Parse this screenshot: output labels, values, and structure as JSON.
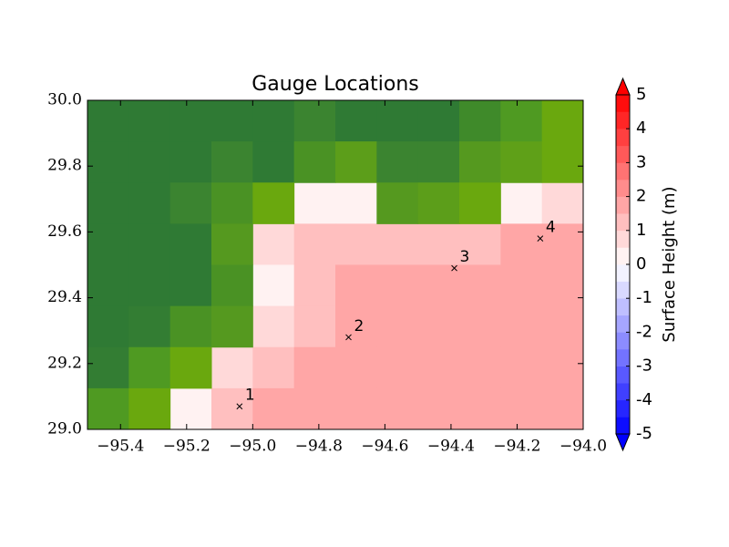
{
  "chart_data": {
    "type": "contour",
    "title": "Gauge Locations",
    "xlim": [
      -95.5,
      -94.0
    ],
    "xticks": [
      {
        "value": -95.4,
        "label": "−95.4"
      },
      {
        "value": -95.2,
        "label": "−95.2"
      },
      {
        "value": -95.0,
        "label": "−95.0"
      },
      {
        "value": -94.8,
        "label": "−94.8"
      },
      {
        "value": -94.6,
        "label": "−94.6"
      },
      {
        "value": -94.4,
        "label": "−94.4"
      },
      {
        "value": -94.2,
        "label": "−94.2"
      },
      {
        "value": -94.0,
        "label": "−94.0"
      }
    ],
    "ylim": [
      29.0,
      30.0
    ],
    "yticks": [
      {
        "value": 29.0,
        "label": "29.0"
      },
      29.2,
      29.4,
      29.6,
      29.8,
      {
        "value": 30.0,
        "label": "30.0"
      }
    ],
    "land_colors": [
      [
        "#2f7a34",
        "#2f7a34",
        "#2f7a34",
        "#2f7a34",
        "#2f7a34",
        "#3b8430",
        "#2f7a34",
        "#2f7a34",
        "#2f7a34",
        "#3f8a2a",
        "#4f9a22",
        "#6aa80e"
      ],
      [
        "#2f7a34",
        "#2f7a34",
        "#2f7a34",
        "#3b8430",
        "#2f7a34",
        "#4a9224",
        "#5c9e1a",
        "#3b8430",
        "#3b8430",
        "#55991f",
        "#5fa018",
        "#6aa80e"
      ],
      [
        "#2f7a34",
        "#2f7a34",
        "#3b8430",
        "#4a9224",
        "#6aa80e",
        null,
        null,
        "#55991f",
        "#5c9e1a",
        "#6aa80e",
        null,
        null
      ],
      [
        "#2f7a34",
        "#2f7a34",
        "#2f7a34",
        "#55991f",
        null,
        null,
        null,
        null,
        null,
        null,
        null,
        null
      ],
      [
        "#2f7a34",
        "#2f7a34",
        "#2f7a34",
        "#4a9224",
        null,
        null,
        null,
        null,
        null,
        null,
        null,
        null
      ],
      [
        "#2f7a34",
        "#337d33",
        "#4a9224",
        "#55991f",
        null,
        null,
        null,
        null,
        null,
        null,
        null,
        null
      ],
      [
        "#337d33",
        "#4f9a22",
        "#6aa80e",
        null,
        null,
        null,
        null,
        null,
        null,
        null,
        null,
        null
      ],
      [
        "#4f9a22",
        "#6aa80e",
        null,
        null,
        null,
        null,
        null,
        null,
        null,
        null,
        null,
        null
      ]
    ],
    "surface_heights": [
      [
        null,
        null,
        null,
        null,
        null,
        null,
        null,
        null,
        null,
        null,
        null,
        null
      ],
      [
        null,
        null,
        null,
        null,
        null,
        null,
        null,
        null,
        null,
        null,
        null,
        null
      ],
      [
        null,
        null,
        null,
        null,
        null,
        0.3,
        0.3,
        null,
        null,
        null,
        0.3,
        0.8
      ],
      [
        null,
        null,
        null,
        null,
        0.8,
        1.2,
        1.2,
        1.0,
        1.2,
        1.2,
        1.7,
        1.8
      ],
      [
        null,
        null,
        null,
        null,
        0.3,
        1.2,
        1.7,
        1.7,
        1.7,
        1.7,
        1.7,
        1.7
      ],
      [
        null,
        null,
        null,
        null,
        0.8,
        1.2,
        1.7,
        1.7,
        1.7,
        1.7,
        1.7,
        1.7
      ],
      [
        null,
        null,
        null,
        0.8,
        1.2,
        1.7,
        1.7,
        1.7,
        1.7,
        1.7,
        1.7,
        1.7
      ],
      [
        null,
        null,
        0.3,
        1.2,
        1.7,
        1.7,
        1.7,
        1.7,
        1.7,
        1.7,
        1.7,
        1.7
      ]
    ],
    "gauges": {
      "x": [
        -95.04,
        -94.71,
        -94.39,
        -94.13
      ],
      "y": [
        29.07,
        29.28,
        29.49,
        29.58
      ],
      "labels": [
        "1",
        "2",
        "3",
        "4"
      ]
    },
    "colorbar": {
      "label": "Surface Height (m)",
      "lim": [
        -5,
        5
      ],
      "ticks": [
        5,
        4,
        3,
        2,
        1,
        0,
        -1,
        -2,
        -3,
        -4,
        -5
      ],
      "cmap": "bwr"
    }
  }
}
